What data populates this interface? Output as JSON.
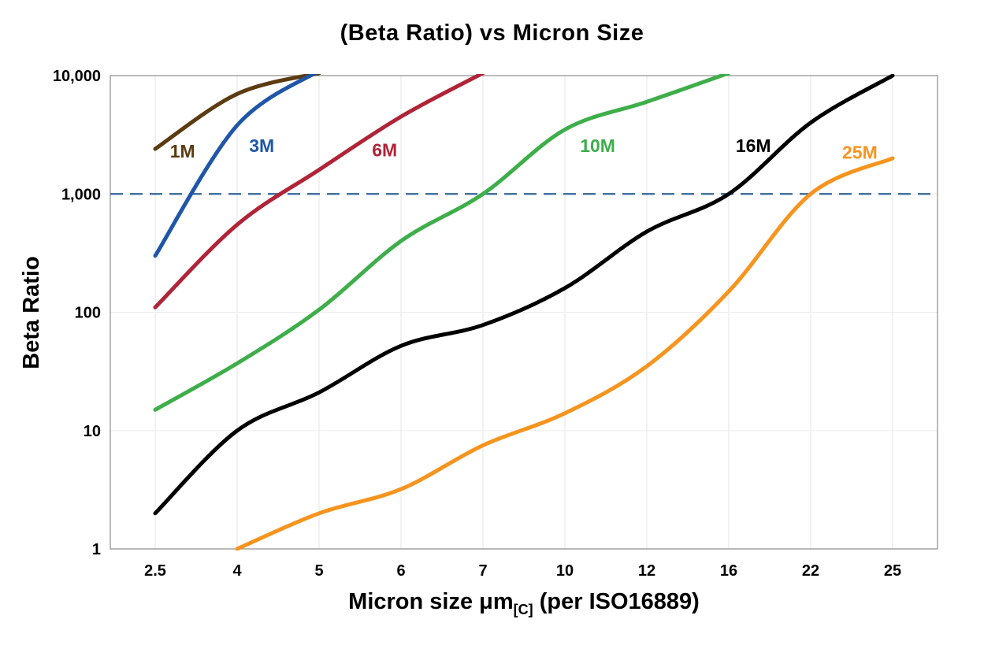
{
  "title": "(Beta Ratio) vs Micron Size",
  "x_axis": {
    "label_main": "Micron size μm",
    "label_sub": "[C]",
    "label_suffix": " (per ISO16889)"
  },
  "y_axis": {
    "label": "Beta Ratio",
    "ticks": [
      "1",
      "10",
      "100",
      "1,000",
      "10,000"
    ],
    "tick_values": [
      1,
      10,
      100,
      1000,
      10000
    ]
  },
  "reference_line": {
    "value": 1000,
    "color": "#336699",
    "style": "dashed"
  },
  "chart_data": {
    "type": "line",
    "x_scale": "categorical",
    "y_scale": "log",
    "title": "(Beta Ratio) vs Micron Size",
    "xlabel": "Micron size μm[C] (per ISO16889)",
    "ylabel": "Beta Ratio",
    "categories": [
      2.5,
      4,
      5,
      6,
      7,
      10,
      12,
      16,
      22,
      25
    ],
    "ylim": [
      1,
      10000
    ],
    "grid": true,
    "series": [
      {
        "name": "1M",
        "color": "#5C3B11",
        "values": [
          2400,
          7000,
          10500,
          null,
          null,
          null,
          null,
          null,
          null,
          null
        ],
        "label_pos": {
          "x": 3.0,
          "y": 2300
        }
      },
      {
        "name": "3M",
        "color": "#1F56A8",
        "values": [
          300,
          3800,
          11000,
          null,
          null,
          null,
          null,
          null,
          null,
          null
        ],
        "label_pos": {
          "x": 4.3,
          "y": 2550
        }
      },
      {
        "name": "6M",
        "color": "#B02437",
        "values": [
          110,
          550,
          1600,
          4500,
          10500,
          null,
          null,
          null,
          null,
          null
        ],
        "label_pos": {
          "x": 5.8,
          "y": 2350
        }
      },
      {
        "name": "10M",
        "color": "#3DAE49",
        "values": [
          15,
          37,
          105,
          400,
          1000,
          3500,
          6000,
          10500,
          null,
          null
        ],
        "label_pos": {
          "x": 10.8,
          "y": 2550
        }
      },
      {
        "name": "16M",
        "color": "#000000",
        "values": [
          2,
          10,
          21,
          52,
          78,
          160,
          480,
          1000,
          4000,
          10000
        ],
        "label_pos": {
          "x": 17.8,
          "y": 2550
        }
      },
      {
        "name": "25M",
        "color": "#F7941E",
        "values": [
          null,
          1,
          2,
          3.2,
          7.5,
          14,
          35,
          150,
          1000,
          2000
        ],
        "label_pos": {
          "x": 23.8,
          "y": 2250
        }
      }
    ]
  }
}
